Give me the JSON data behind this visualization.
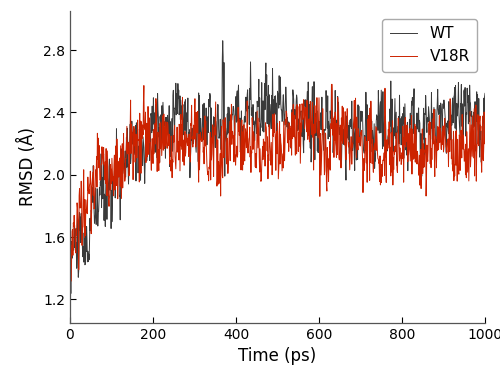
{
  "n_points": 1001,
  "t_start": 0,
  "t_end": 1000,
  "xlabel": "Time (ps)",
  "ylabel": "RMSD (Å)",
  "xlim": [
    0,
    1000
  ],
  "ylim": [
    1.05,
    3.05
  ],
  "yticks": [
    1.2,
    1.6,
    2.0,
    2.4,
    2.8
  ],
  "xticks": [
    0,
    200,
    400,
    600,
    800,
    1000
  ],
  "wt_color": "#3a3a3a",
  "v18r_color": "#cc2200",
  "wt_label": "WT",
  "v18r_label": "V18R",
  "line_width": 0.7,
  "legend_loc": "upper right",
  "background_color": "#ffffff",
  "wt_seed": 10,
  "v18r_seed": 20,
  "xlabel_fontsize": 12,
  "ylabel_fontsize": 12,
  "tick_fontsize": 10,
  "legend_fontsize": 11
}
